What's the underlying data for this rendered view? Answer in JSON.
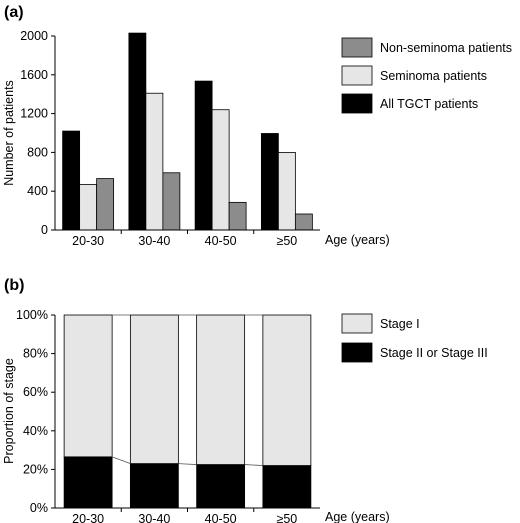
{
  "chart_data": [
    {
      "panel_label": "(a)",
      "type": "bar",
      "ylabel": "Number of patients",
      "xlabel": "Age (years)",
      "ylim": [
        0,
        2000
      ],
      "yticks": [
        "0",
        "400",
        "800",
        "1200",
        "1600",
        "2000"
      ],
      "ytick_values": [
        0,
        400,
        800,
        1200,
        1600,
        2000
      ],
      "categories": [
        "20-30",
        "30-40",
        "40-50",
        "≥50"
      ],
      "series": [
        {
          "name": "All TGCT patients",
          "color": "#000000",
          "values": [
            1020,
            2030,
            1535,
            995
          ]
        },
        {
          "name": "Seminoma patients",
          "color": "#e6e6e6",
          "values": [
            470,
            1410,
            1240,
            800
          ]
        },
        {
          "name": "Non-seminoma patients",
          "color": "#8c8c8c",
          "values": [
            530,
            590,
            285,
            165
          ]
        }
      ],
      "legend_order": [
        "Non-seminoma patients",
        "Seminoma patients",
        "All TGCT patients"
      ],
      "legend_position": "right"
    },
    {
      "panel_label": "(b)",
      "type": "bar",
      "stacked": true,
      "ylabel": "Proportion of stage",
      "xlabel": "Age (years)",
      "ylim": [
        0,
        100
      ],
      "yticks": [
        "0%",
        "20%",
        "40%",
        "60%",
        "80%",
        "100%"
      ],
      "ytick_values": [
        0,
        20,
        40,
        60,
        80,
        100
      ],
      "categories": [
        "20-30",
        "30-40",
        "40-50",
        "≥50"
      ],
      "series": [
        {
          "name": "Stage II or Stage III",
          "color": "#000000",
          "values": [
            26.5,
            23,
            22.5,
            22
          ]
        },
        {
          "name": "Stage I",
          "color": "#e6e6e6",
          "values": [
            73.5,
            77,
            77.5,
            78
          ]
        }
      ],
      "legend_order": [
        "Stage I",
        "Stage II or Stage III"
      ],
      "legend_position": "right"
    }
  ]
}
